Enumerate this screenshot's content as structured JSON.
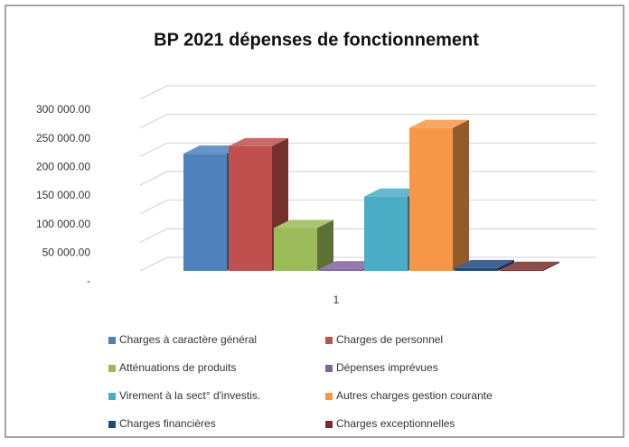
{
  "chart_data": {
    "type": "bar3d",
    "title": "BP 2021 dépenses de fonctionnement",
    "categories": [
      "1"
    ],
    "series": [
      {
        "name": "Charges à caractère général",
        "color": "#4f81bd",
        "values": [
          205000
        ]
      },
      {
        "name": "Charges de personnel",
        "color": "#c0504d",
        "values": [
          218000
        ]
      },
      {
        "name": "Atténuations de produits",
        "color": "#9bbb59",
        "values": [
          75000
        ]
      },
      {
        "name": "Dépenses imprévues",
        "color": "#8064a2",
        "values": [
          3000
        ]
      },
      {
        "name": "Virement à la sect° d'investis.",
        "color": "#4bacc6",
        "values": [
          130000
        ]
      },
      {
        "name": "Autres charges gestion courante",
        "color": "#f79646",
        "values": [
          250000
        ]
      },
      {
        "name": "Charges financières",
        "color": "#1f497d",
        "values": [
          5000
        ]
      },
      {
        "name": "Charges exceptionnelles",
        "color": "#772c2a",
        "values": [
          2000
        ]
      }
    ],
    "ylim": [
      0,
      300000
    ],
    "yticks": [
      {
        "value": 0,
        "label": "-"
      },
      {
        "value": 50000,
        "label": "50 000.00"
      },
      {
        "value": 100000,
        "label": "100 000.00"
      },
      {
        "value": 150000,
        "label": "150 000.00"
      },
      {
        "value": 200000,
        "label": "200 000.00"
      },
      {
        "value": 250000,
        "label": "250 000.00"
      },
      {
        "value": 300000,
        "label": "300 000.00"
      }
    ],
    "grid": true
  }
}
